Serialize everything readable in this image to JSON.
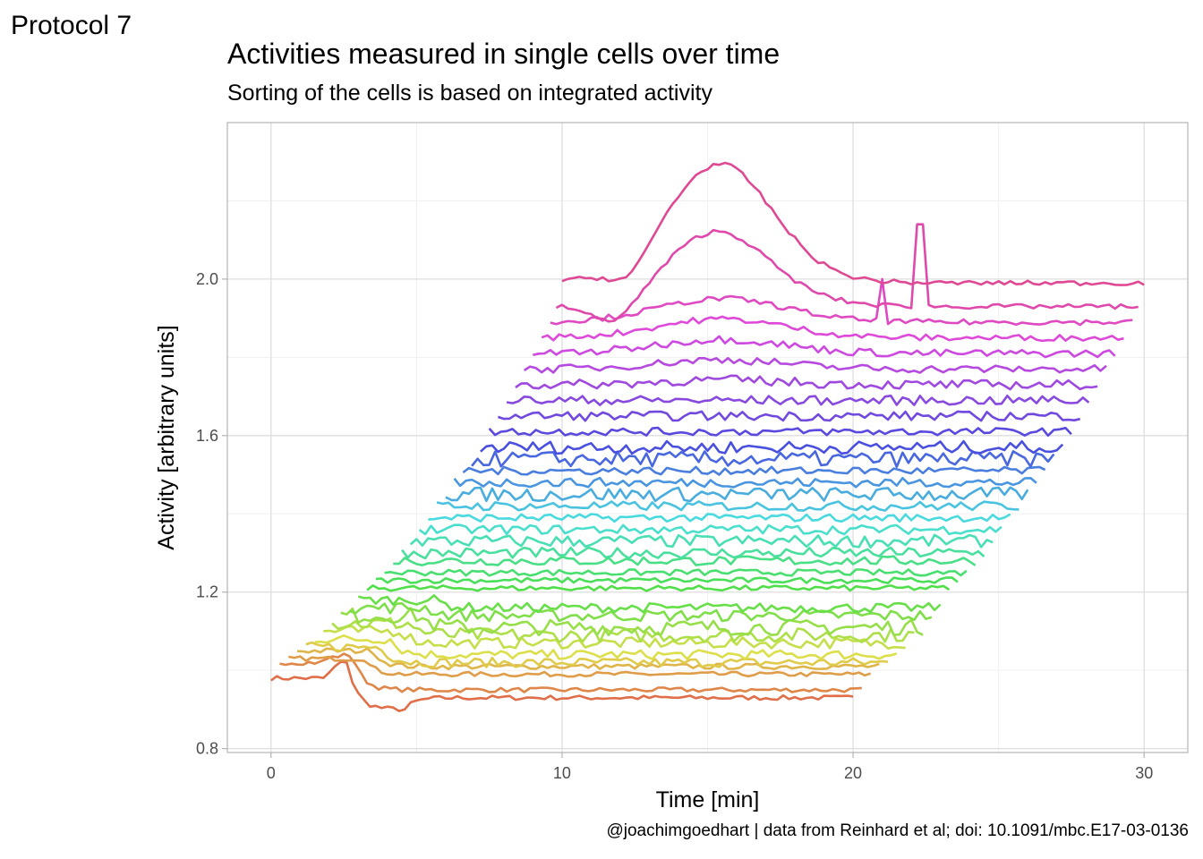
{
  "tag": "Protocol 7",
  "chart_data": {
    "type": "line",
    "title": "Activities measured in single cells over time",
    "subtitle": "Sorting of the cells is based on integrated activity",
    "xlabel": "Time [min]",
    "ylabel": "Activity [arbitrary units]",
    "caption": "@joachimgoedhart | data from Reinhard et al; doi: 10.1091/mbc.E17-03-0136",
    "xlim": [
      -1.5,
      31.5
    ],
    "ylim": [
      0.79,
      2.4
    ],
    "x_ticks": [
      0,
      10,
      20,
      30
    ],
    "x_tick_labels": [
      "0",
      "10",
      "20",
      "30"
    ],
    "y_ticks": [
      0.8,
      1.2,
      1.6,
      2.0
    ],
    "y_tick_labels": [
      "0.8",
      "1.2",
      "1.6",
      "2.0"
    ],
    "grid": true,
    "legend": "none",
    "color_scale": "hue, red (bottom) to pink (top)",
    "series": [
      {
        "start": 0.0,
        "end": 20.0,
        "baseline": 0.98,
        "offset": 0.0,
        "noise": 0.006,
        "events": [
          {
            "x": 1.9,
            "d": 0.05
          },
          {
            "x": 2.6,
            "d": -0.13
          },
          {
            "x": 4.6,
            "d": 0.03
          }
        ],
        "spikes": []
      },
      {
        "start": 0.3,
        "end": 20.3,
        "baseline": 1.02,
        "offset": 0.025,
        "noise": 0.006,
        "events": [
          {
            "x": 1.7,
            "d": 0.02
          },
          {
            "x": 2.8,
            "d": -0.09
          }
        ],
        "spikes": []
      },
      {
        "start": 0.6,
        "end": 20.6,
        "baseline": 1.03,
        "offset": 0.05,
        "noise": 0.006,
        "events": [
          {
            "x": 3.2,
            "d": -0.04
          }
        ],
        "spikes": []
      },
      {
        "start": 0.9,
        "end": 20.9,
        "baseline": 1.05,
        "offset": 0.075,
        "noise": 0.007,
        "events": [
          {
            "x": 3.5,
            "d": -0.04
          }
        ],
        "spikes": []
      },
      {
        "start": 1.2,
        "end": 21.2,
        "baseline": 1.06,
        "offset": 0.1,
        "noise": 0.012,
        "events": [
          {
            "x": 3.8,
            "d": -0.04
          }
        ],
        "spikes": []
      },
      {
        "start": 1.5,
        "end": 21.5,
        "baseline": 1.08,
        "offset": 0.125,
        "noise": 0.012,
        "events": [
          {
            "x": 4.1,
            "d": -0.04
          }
        ],
        "spikes": []
      },
      {
        "start": 1.8,
        "end": 21.8,
        "baseline": 1.1,
        "offset": 0.15,
        "noise": 0.014,
        "events": [
          {
            "x": 4.5,
            "d": -0.03
          }
        ],
        "spikes": []
      },
      {
        "start": 2.1,
        "end": 22.1,
        "baseline": 1.12,
        "offset": 0.175,
        "noise": 0.018,
        "events": [
          {
            "x": 4.8,
            "d": -0.03
          }
        ],
        "spikes": []
      },
      {
        "start": 2.4,
        "end": 22.4,
        "baseline": 1.14,
        "offset": 0.2,
        "noise": 0.02,
        "events": [
          {
            "x": 5.1,
            "d": -0.03
          }
        ],
        "spikes": []
      },
      {
        "start": 2.7,
        "end": 22.7,
        "baseline": 1.16,
        "offset": 0.225,
        "noise": 0.015,
        "events": [
          {
            "x": 5.4,
            "d": -0.02
          }
        ],
        "spikes": []
      },
      {
        "start": 3.0,
        "end": 23.0,
        "baseline": 1.18,
        "offset": 0.25,
        "noise": 0.012,
        "events": [
          {
            "x": 5.7,
            "d": -0.02
          }
        ],
        "spikes": []
      },
      {
        "start": 3.3,
        "end": 23.3,
        "baseline": 1.21,
        "offset": 0.275,
        "noise": 0.007,
        "events": [],
        "spikes": []
      },
      {
        "start": 3.6,
        "end": 23.6,
        "baseline": 1.23,
        "offset": 0.3,
        "noise": 0.007,
        "events": [],
        "spikes": []
      },
      {
        "start": 3.9,
        "end": 23.9,
        "baseline": 1.25,
        "offset": 0.325,
        "noise": 0.008,
        "events": [],
        "spikes": []
      },
      {
        "start": 4.2,
        "end": 24.2,
        "baseline": 1.28,
        "offset": 0.35,
        "noise": 0.012,
        "events": [],
        "spikes": []
      },
      {
        "start": 4.5,
        "end": 24.5,
        "baseline": 1.3,
        "offset": 0.375,
        "noise": 0.014,
        "events": [],
        "spikes": []
      },
      {
        "start": 4.8,
        "end": 24.8,
        "baseline": 1.33,
        "offset": 0.4,
        "noise": 0.016,
        "events": [],
        "spikes": []
      },
      {
        "start": 5.1,
        "end": 25.1,
        "baseline": 1.36,
        "offset": 0.425,
        "noise": 0.012,
        "events": [],
        "spikes": []
      },
      {
        "start": 5.4,
        "end": 25.4,
        "baseline": 1.39,
        "offset": 0.45,
        "noise": 0.01,
        "events": [],
        "spikes": []
      },
      {
        "start": 5.7,
        "end": 25.7,
        "baseline": 1.42,
        "offset": 0.475,
        "noise": 0.012,
        "events": [],
        "spikes": []
      },
      {
        "start": 6.0,
        "end": 26.0,
        "baseline": 1.45,
        "offset": 0.5,
        "noise": 0.018,
        "events": [],
        "spikes": []
      },
      {
        "start": 6.3,
        "end": 26.3,
        "baseline": 1.48,
        "offset": 0.525,
        "noise": 0.012,
        "events": [],
        "spikes": []
      },
      {
        "start": 6.6,
        "end": 26.6,
        "baseline": 1.51,
        "offset": 0.55,
        "noise": 0.01,
        "events": [],
        "spikes": []
      },
      {
        "start": 6.9,
        "end": 26.9,
        "baseline": 1.54,
        "offset": 0.575,
        "noise": 0.02,
        "events": [],
        "spikes": []
      },
      {
        "start": 7.2,
        "end": 27.2,
        "baseline": 1.57,
        "offset": 0.6,
        "noise": 0.016,
        "events": [],
        "spikes": []
      },
      {
        "start": 7.5,
        "end": 27.5,
        "baseline": 1.61,
        "offset": 0.625,
        "noise": 0.01,
        "events": [],
        "spikes": []
      },
      {
        "start": 7.8,
        "end": 27.8,
        "baseline": 1.65,
        "offset": 0.65,
        "noise": 0.012,
        "events": [],
        "spikes": []
      },
      {
        "start": 8.1,
        "end": 28.1,
        "baseline": 1.69,
        "offset": 0.675,
        "noise": 0.012,
        "events": [],
        "spikes": []
      },
      {
        "start": 8.4,
        "end": 28.4,
        "baseline": 1.73,
        "offset": 0.7,
        "noise": 0.012,
        "events": [],
        "spikes": []
      },
      {
        "start": 8.7,
        "end": 28.7,
        "baseline": 1.77,
        "offset": 0.725,
        "noise": 0.01,
        "events": [],
        "spikes": []
      },
      {
        "start": 9.0,
        "end": 29.0,
        "baseline": 1.81,
        "offset": 0.75,
        "noise": 0.01,
        "events": [],
        "spikes": []
      },
      {
        "start": 9.3,
        "end": 29.3,
        "baseline": 1.85,
        "offset": 0.775,
        "noise": 0.008,
        "events": [],
        "spikes": []
      },
      {
        "start": 9.6,
        "end": 29.6,
        "baseline": 1.89,
        "offset": 0.8,
        "noise": 0.007,
        "events": [],
        "spikes": [
          {
            "x": 21.0,
            "v": 2.0
          }
        ]
      },
      {
        "start": 9.8,
        "end": 29.8,
        "baseline": 1.93,
        "offset": 0.825,
        "noise": 0.006,
        "events": [],
        "spikes": [
          {
            "x": 22.3,
            "v": 2.14
          }
        ]
      },
      {
        "start": 10.0,
        "end": 30.0,
        "baseline": 1.99,
        "offset": 0.85,
        "noise": 0.006,
        "events": [],
        "spikes": []
      }
    ]
  }
}
